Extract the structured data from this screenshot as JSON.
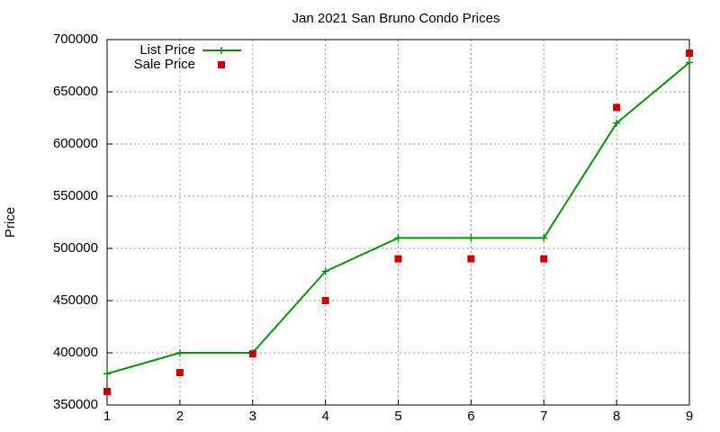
{
  "chart_data": {
    "type": "line",
    "title": "Jan 2021 San Bruno Condo Prices",
    "y_label": "Price",
    "x": [
      1,
      2,
      3,
      4,
      5,
      6,
      7,
      8,
      9
    ],
    "series": [
      {
        "name": "List Price",
        "color": "#009900",
        "line": true,
        "marker": "plus",
        "values": [
          380000,
          400000,
          400000,
          478000,
          510000,
          510000,
          510000,
          620000,
          678000
        ]
      },
      {
        "name": "Sale Price",
        "color": "#cc0000",
        "line": false,
        "marker": "square",
        "values": [
          363000,
          381000,
          399000,
          450000,
          490000,
          490000,
          490000,
          635000,
          687000
        ]
      }
    ],
    "xlim": [
      1,
      9
    ],
    "xticks": [
      1,
      2,
      3,
      4,
      5,
      6,
      7,
      8,
      9
    ],
    "ylim": [
      350000,
      700000
    ],
    "yticks": [
      350000,
      400000,
      450000,
      500000,
      550000,
      600000,
      650000,
      700000
    ],
    "grid": true,
    "legend": "top-left"
  }
}
